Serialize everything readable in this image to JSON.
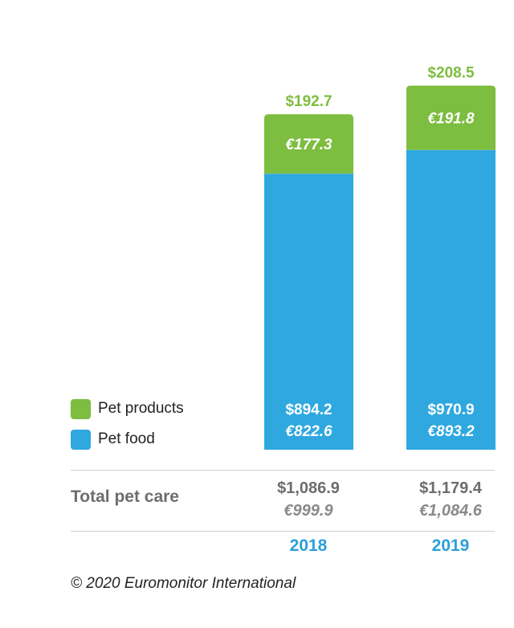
{
  "chart_data": {
    "type": "bar",
    "stacked": true,
    "categories": [
      "2018",
      "2019"
    ],
    "series": [
      {
        "name": "Pet food",
        "color": "#2fa8df",
        "usd_labels": [
          "$894.2",
          "$970.9"
        ],
        "eur_labels": [
          "€822.6",
          "€893.2"
        ],
        "values": [
          894.2,
          970.9
        ]
      },
      {
        "name": "Pet products",
        "color": "#7dbd3f",
        "usd_labels": [
          "$192.7",
          "$208.5"
        ],
        "eur_labels": [
          "€177.3",
          "€191.8"
        ],
        "values": [
          192.7,
          208.5
        ]
      }
    ],
    "totals": {
      "label": "Total pet care",
      "usd": [
        "$1,086.9",
        "$1,179.4"
      ],
      "eur": [
        "€999.9",
        "€1,084.6"
      ]
    },
    "year_color": "#2b9fd9",
    "legend_placement": "bottom-left",
    "copyright": "© 2020 Euromonitor International"
  }
}
